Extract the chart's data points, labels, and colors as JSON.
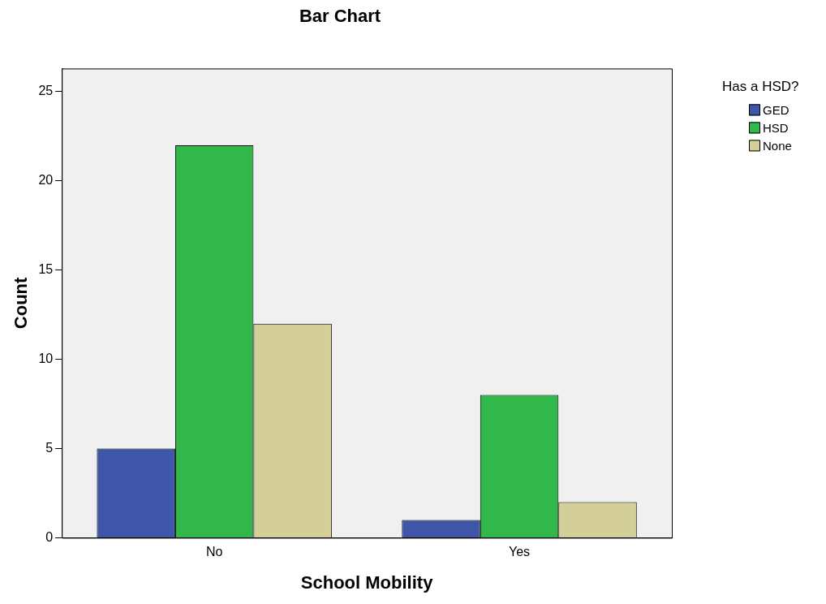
{
  "chart_data": {
    "type": "bar",
    "title": "Bar Chart",
    "xlabel": "School Mobility",
    "ylabel": "Count",
    "legend_title": "Has a HSD?",
    "legend": "top right",
    "grid": false,
    "categories": [
      "No",
      "Yes"
    ],
    "series": [
      {
        "name": "GED",
        "color": "#3f56a8",
        "values": [
          5,
          1
        ]
      },
      {
        "name": "HSD",
        "color": "#32b84a",
        "values": [
          22,
          8
        ]
      },
      {
        "name": "None",
        "color": "#d4cf98",
        "values": [
          12,
          2
        ]
      }
    ],
    "ylim": [
      0,
      26.3
    ],
    "yticks": [
      0,
      5,
      10,
      15,
      20,
      25
    ]
  }
}
